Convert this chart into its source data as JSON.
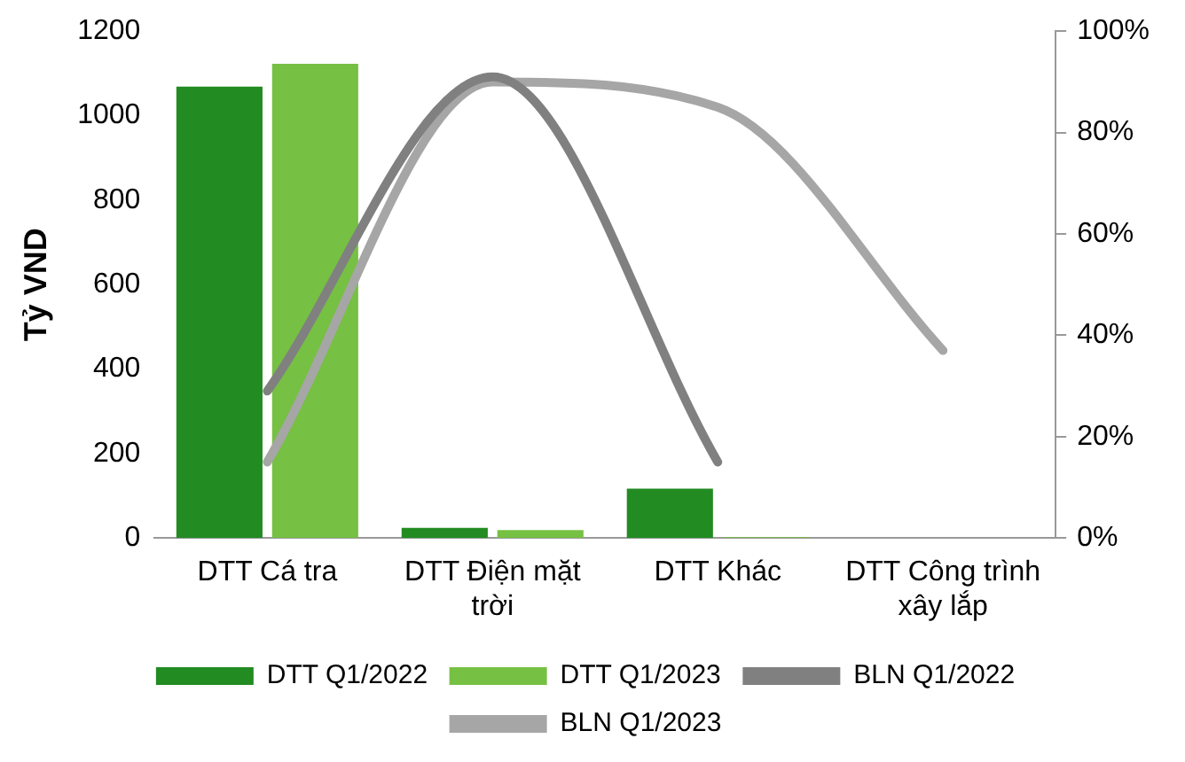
{
  "chart_data": {
    "type": "bar",
    "ylabel": "Tỷ VND",
    "categories": [
      "DTT Cá tra",
      "DTT Điện mặt trời",
      "DTT Khác",
      "DTT Công trình xây lắp"
    ],
    "series": [
      {
        "name": "DTT Q1/2022",
        "color": "#228b22",
        "values": [
          1069,
          24,
          117,
          0
        ]
      },
      {
        "name": "DTT Q1/2023",
        "color": "#76c043",
        "values": [
          1123,
          19,
          2,
          0
        ]
      },
      {
        "name": "BLN Q1/2022",
        "type": "line",
        "axis": "y2",
        "color": "#808080",
        "values": [
          29,
          91,
          15,
          null
        ]
      },
      {
        "name": "BLN Q1/2023",
        "type": "line",
        "axis": "y2",
        "color": "#a6a6a6",
        "values": [
          15,
          90,
          85,
          37
        ]
      }
    ],
    "ylim": [
      0,
      1200
    ],
    "yticks": [
      0,
      200,
      400,
      600,
      800,
      1000,
      1200
    ],
    "y2lim": [
      0,
      100
    ],
    "y2ticks": [
      {
        "value": 0,
        "label": "0%"
      },
      {
        "value": 20,
        "label": "20%"
      },
      {
        "value": 40,
        "label": "40%"
      },
      {
        "value": 60,
        "label": "60%"
      },
      {
        "value": 80,
        "label": "80%"
      },
      {
        "value": 100,
        "label": "100%"
      }
    ],
    "grid": false,
    "legend": "bottom",
    "marker": "none",
    "line_style": "solid"
  }
}
